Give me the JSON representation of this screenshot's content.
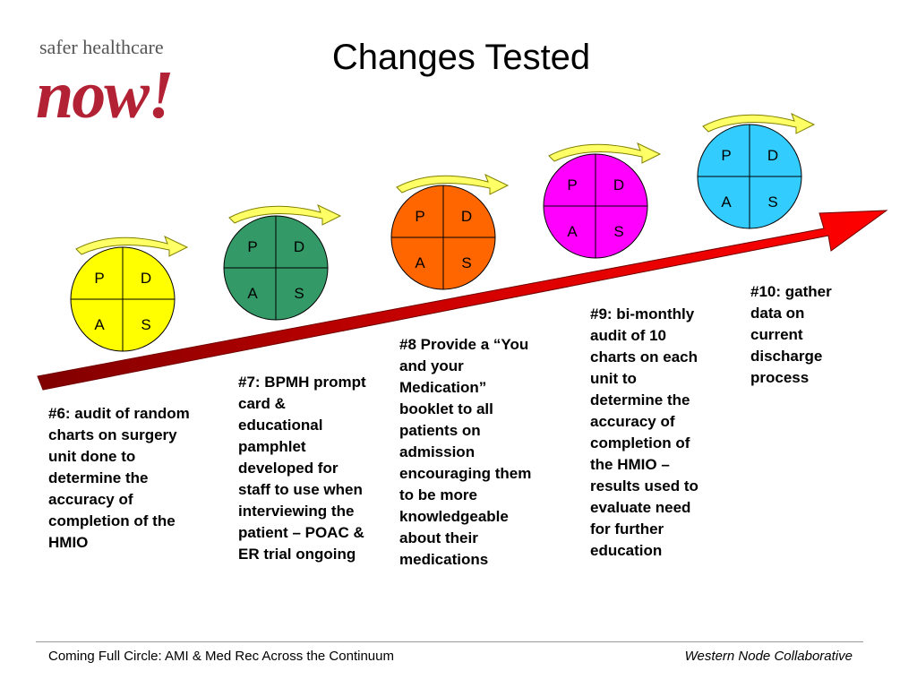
{
  "logo": {
    "top": "safer healthcare",
    "main": "now!"
  },
  "title": "Changes Tested",
  "cycles": [
    {
      "p": "P",
      "d": "D",
      "a": "A",
      "s": "S",
      "color": "#ffff00"
    },
    {
      "p": "P",
      "d": "D",
      "a": "A",
      "s": "S",
      "color": "#339966"
    },
    {
      "p": "P",
      "d": "D",
      "a": "A",
      "s": "S",
      "color": "#ff6600"
    },
    {
      "p": "P",
      "d": "D",
      "a": "A",
      "s": "S",
      "color": "#ff00ff"
    },
    {
      "p": "P",
      "d": "D",
      "a": "A",
      "s": "S",
      "color": "#33ccff"
    }
  ],
  "captions": [
    "#6:  audit of random charts on surgery unit done to determine the accuracy of completion of the HMIO",
    "#7: BPMH prompt card & educational pamphlet developed for staff to use when interviewing the patient – POAC & ER trial ongoing",
    "#8  Provide a “You and your Medication” booklet to all patients on admission encouraging them to be more knowledgeable about their medications",
    "#9: bi-monthly audit of 10 charts on each unit to determine the accuracy of completion of the HMIO – results used to evaluate need for further education",
    "#10: gather data on current discharge process"
  ],
  "footer": {
    "left": "Coming Full Circle:  AMI & Med Rec Across the Continuum",
    "right": "Western Node Collaborative"
  },
  "colors": {
    "arrow": "#ff0000",
    "arrow_dark": "#800000",
    "loop_arrow": "#ffff66"
  }
}
